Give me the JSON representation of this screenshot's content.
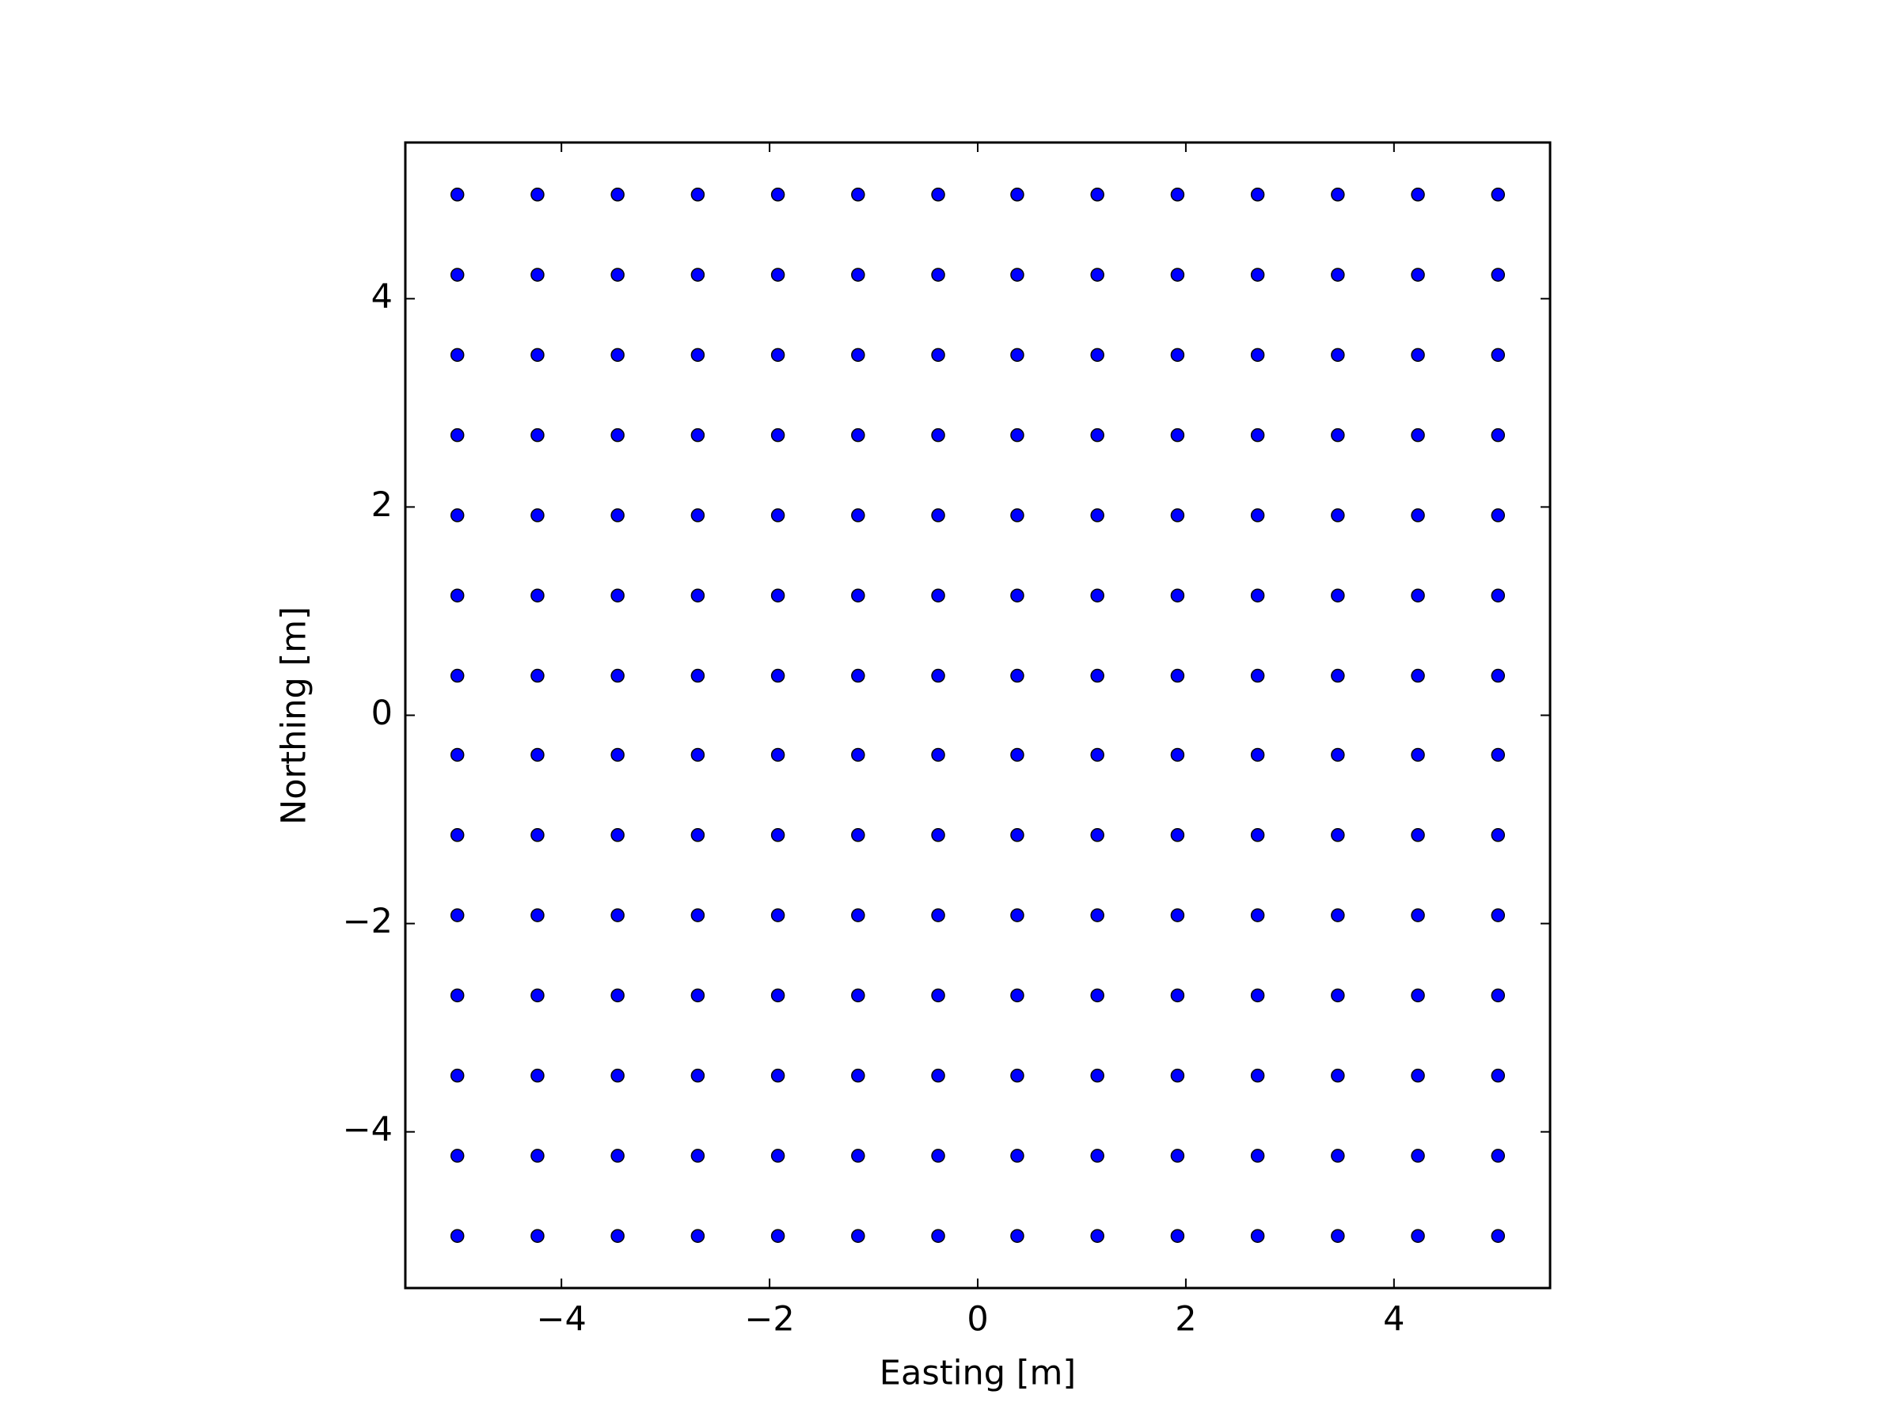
{
  "chart_data": {
    "type": "scatter",
    "xlabel": "Easting [m]",
    "ylabel": "Northing [m]",
    "color": "#0000ff",
    "xlim": [
      -5.5,
      5.5
    ],
    "ylim": [
      -5.5,
      5.5
    ],
    "xticks": [
      {
        "value": -4,
        "label": "−4"
      },
      {
        "value": -2,
        "label": "−2"
      },
      0,
      2,
      4
    ],
    "yticks": [
      {
        "value": -4,
        "label": "−4"
      },
      {
        "value": -2,
        "label": "−2"
      },
      0,
      2,
      4
    ],
    "x": [
      -5,
      -4.23,
      -3.46,
      -2.69,
      -1.92,
      -1.15,
      -0.38,
      0.38,
      1.15,
      1.92,
      2.69,
      3.46,
      4.23,
      5,
      -5,
      -4.23,
      -3.46,
      -2.69,
      -1.92,
      -1.15,
      -0.38,
      0.38,
      1.15,
      1.92,
      2.69,
      3.46,
      4.23,
      5,
      -5,
      -4.23,
      -3.46,
      -2.69,
      -1.92,
      -1.15,
      -0.38,
      0.38,
      1.15,
      1.92,
      2.69,
      3.46,
      4.23,
      5,
      -5,
      -4.23,
      -3.46,
      -2.69,
      -1.92,
      -1.15,
      -0.38,
      0.38,
      1.15,
      1.92,
      2.69,
      3.46,
      4.23,
      5,
      -5,
      -4.23,
      -3.46,
      -2.69,
      -1.92,
      -1.15,
      -0.38,
      0.38,
      1.15,
      1.92,
      2.69,
      3.46,
      4.23,
      5,
      -5,
      -4.23,
      -3.46,
      -2.69,
      -1.92,
      -1.15,
      -0.38,
      0.38,
      1.15,
      1.92,
      2.69,
      3.46,
      4.23,
      5,
      -5,
      -4.23,
      -3.46,
      -2.69,
      -1.92,
      -1.15,
      -0.38,
      0.38,
      1.15,
      1.92,
      2.69,
      3.46,
      4.23,
      5,
      -5,
      -4.23,
      -3.46,
      -2.69,
      -1.92,
      -1.15,
      -0.38,
      0.38,
      1.15,
      1.92,
      2.69,
      3.46,
      4.23,
      5,
      -5,
      -4.23,
      -3.46,
      -2.69,
      -1.92,
      -1.15,
      -0.38,
      0.38,
      1.15,
      1.92,
      2.69,
      3.46,
      4.23,
      5,
      -5,
      -4.23,
      -3.46,
      -2.69,
      -1.92,
      -1.15,
      -0.38,
      0.38,
      1.15,
      1.92,
      2.69,
      3.46,
      4.23,
      5,
      -5,
      -4.23,
      -3.46,
      -2.69,
      -1.92,
      -1.15,
      -0.38,
      0.38,
      1.15,
      1.92,
      2.69,
      3.46,
      4.23,
      5,
      -5,
      -4.23,
      -3.46,
      -2.69,
      -1.92,
      -1.15,
      -0.38,
      0.38,
      1.15,
      1.92,
      2.69,
      3.46,
      4.23,
      5,
      -5,
      -4.23,
      -3.46,
      -2.69,
      -1.92,
      -1.15,
      -0.38,
      0.38,
      1.15,
      1.92,
      2.69,
      3.46,
      4.23,
      5,
      -5,
      -4.23,
      -3.46,
      -2.69,
      -1.92,
      -1.15,
      -0.38,
      0.38,
      1.15,
      1.92,
      2.69,
      3.46,
      4.23,
      5
    ],
    "y": [
      -5,
      -5,
      -5,
      -5,
      -5,
      -5,
      -5,
      -5,
      -5,
      -5,
      -5,
      -5,
      -5,
      -5,
      -4.23,
      -4.23,
      -4.23,
      -4.23,
      -4.23,
      -4.23,
      -4.23,
      -4.23,
      -4.23,
      -4.23,
      -4.23,
      -4.23,
      -4.23,
      -4.23,
      -3.46,
      -3.46,
      -3.46,
      -3.46,
      -3.46,
      -3.46,
      -3.46,
      -3.46,
      -3.46,
      -3.46,
      -3.46,
      -3.46,
      -3.46,
      -3.46,
      -2.69,
      -2.69,
      -2.69,
      -2.69,
      -2.69,
      -2.69,
      -2.69,
      -2.69,
      -2.69,
      -2.69,
      -2.69,
      -2.69,
      -2.69,
      -2.69,
      -1.92,
      -1.92,
      -1.92,
      -1.92,
      -1.92,
      -1.92,
      -1.92,
      -1.92,
      -1.92,
      -1.92,
      -1.92,
      -1.92,
      -1.92,
      -1.92,
      -1.15,
      -1.15,
      -1.15,
      -1.15,
      -1.15,
      -1.15,
      -1.15,
      -1.15,
      -1.15,
      -1.15,
      -1.15,
      -1.15,
      -1.15,
      -1.15,
      -0.38,
      -0.38,
      -0.38,
      -0.38,
      -0.38,
      -0.38,
      -0.38,
      -0.38,
      -0.38,
      -0.38,
      -0.38,
      -0.38,
      -0.38,
      -0.38,
      0.38,
      0.38,
      0.38,
      0.38,
      0.38,
      0.38,
      0.38,
      0.38,
      0.38,
      0.38,
      0.38,
      0.38,
      0.38,
      0.38,
      1.15,
      1.15,
      1.15,
      1.15,
      1.15,
      1.15,
      1.15,
      1.15,
      1.15,
      1.15,
      1.15,
      1.15,
      1.15,
      1.15,
      1.92,
      1.92,
      1.92,
      1.92,
      1.92,
      1.92,
      1.92,
      1.92,
      1.92,
      1.92,
      1.92,
      1.92,
      1.92,
      1.92,
      2.69,
      2.69,
      2.69,
      2.69,
      2.69,
      2.69,
      2.69,
      2.69,
      2.69,
      2.69,
      2.69,
      2.69,
      2.69,
      2.69,
      3.46,
      3.46,
      3.46,
      3.46,
      3.46,
      3.46,
      3.46,
      3.46,
      3.46,
      3.46,
      3.46,
      3.46,
      3.46,
      3.46,
      4.23,
      4.23,
      4.23,
      4.23,
      4.23,
      4.23,
      4.23,
      4.23,
      4.23,
      4.23,
      4.23,
      4.23,
      4.23,
      4.23,
      5,
      5,
      5,
      5,
      5,
      5,
      5,
      5,
      5,
      5,
      5,
      5,
      5,
      5
    ]
  }
}
